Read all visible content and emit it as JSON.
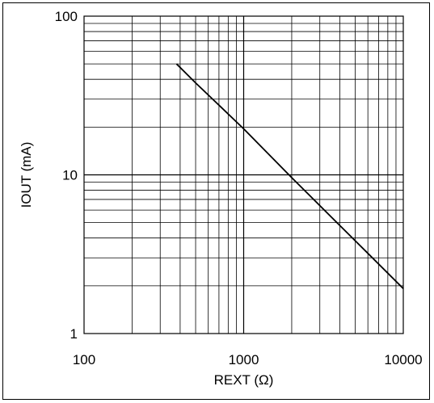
{
  "chart_data": {
    "type": "line",
    "title": "",
    "xlabel": "REXT (Ω)",
    "ylabel": "IOUT (mA)",
    "x_scale": "log",
    "y_scale": "log",
    "xlim": [
      100,
      10000
    ],
    "ylim": [
      1,
      100
    ],
    "x_ticks": [
      "100",
      "1000",
      "10000"
    ],
    "y_ticks": [
      "1",
      "10",
      "100"
    ],
    "grid": true,
    "legend": "none",
    "line_color": "#000000",
    "series": [
      {
        "x": [
          380,
          500,
          700,
          1000,
          2000,
          4000,
          6000,
          10000
        ],
        "y": [
          50,
          38,
          27.5,
          19.5,
          9.6,
          4.8,
          3.2,
          1.92
        ]
      }
    ]
  }
}
